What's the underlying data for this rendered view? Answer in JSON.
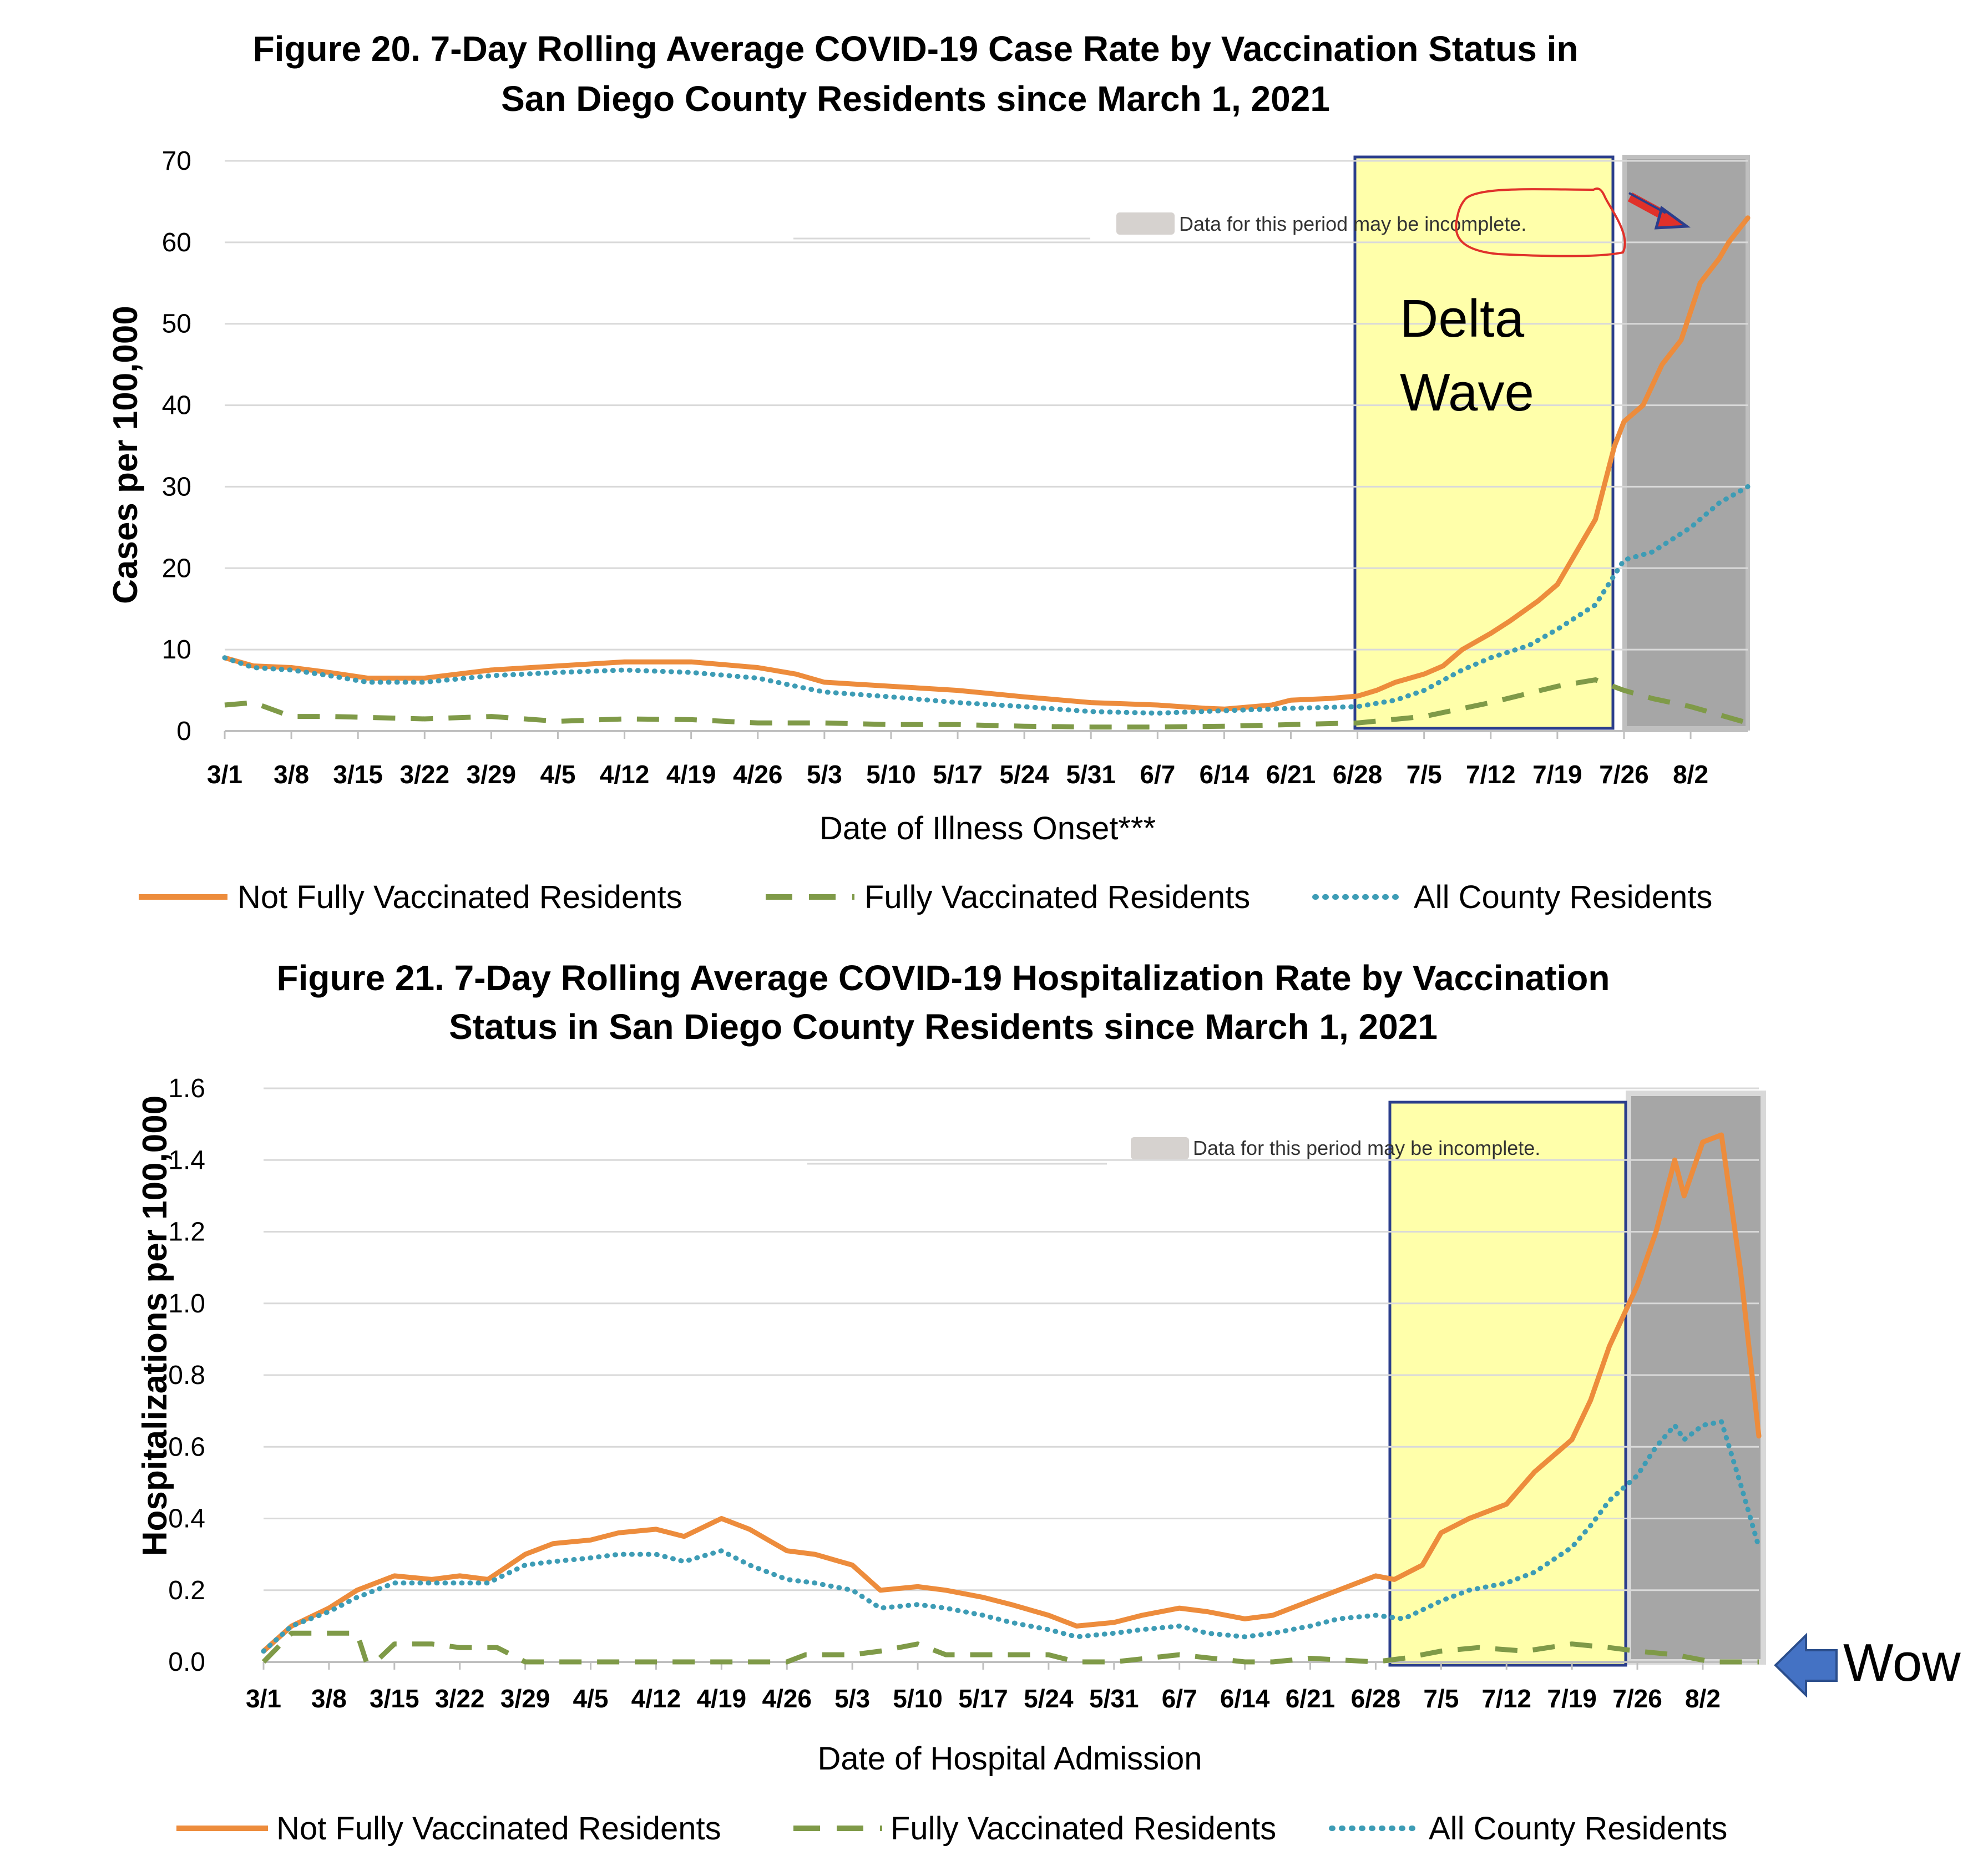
{
  "colors": {
    "not_vaccinated": "#ED8C3C",
    "fully_vaccinated": "#7F9A48",
    "all_residents": "#3D9CB5",
    "delta_box_fill": "#FFFFAA",
    "delta_box_stroke": "#2B3E8C",
    "incomplete_fill": "#A6A6A6",
    "circle_red": "#E0312A",
    "arrow_blue": "#4472C4"
  },
  "annotations": {
    "delta_line1": "Delta",
    "delta_line2": "Wave",
    "wow": "Wow",
    "incomplete_note": "Data for this period may be incomplete."
  },
  "chart_data": [
    {
      "type": "line",
      "title_line1": "Figure 20. 7-Day Rolling Average COVID-19 Case Rate by Vaccination Status in",
      "title_line2": "San Diego County Residents since March 1, 2021",
      "xlabel": "Date of Illness Onset***",
      "ylabel": "Cases per 100,000",
      "ylim": [
        0,
        70
      ],
      "yticks": [
        "0",
        "10",
        "20",
        "30",
        "40",
        "50",
        "60",
        "70"
      ],
      "xlim_days": [
        0,
        160
      ],
      "xticks": [
        "3/1",
        "3/8",
        "3/15",
        "3/22",
        "3/29",
        "4/5",
        "4/12",
        "4/19",
        "4/26",
        "5/3",
        "5/10",
        "5/17",
        "5/24",
        "5/31",
        "6/7",
        "6/14",
        "6/21",
        "6/28",
        "7/5",
        "7/12",
        "7/19",
        "7/26",
        "8/2"
      ],
      "highlight_days": [
        119,
        146
      ],
      "incomplete_days": [
        147,
        160
      ],
      "series": [
        {
          "name": "Not Fully Vaccinated Residents",
          "style": "solid",
          "x": [
            0,
            3,
            7,
            11,
            15,
            21,
            28,
            35,
            42,
            49,
            56,
            60,
            63,
            70,
            77,
            84,
            91,
            98,
            103,
            105,
            110,
            112,
            116,
            119,
            121,
            123,
            126,
            128,
            130,
            133,
            135,
            138,
            140,
            142,
            144,
            146,
            147,
            149,
            151,
            153,
            155,
            157,
            158,
            160
          ],
          "values": [
            9,
            8,
            7.8,
            7.2,
            6.5,
            6.5,
            7.5,
            8,
            8.5,
            8.5,
            7.8,
            7,
            6,
            5.5,
            5,
            4.2,
            3.5,
            3.2,
            2.8,
            2.7,
            3.2,
            3.8,
            4,
            4.3,
            5,
            6,
            7,
            8,
            10,
            12,
            13.5,
            16,
            18,
            22,
            26,
            35,
            38,
            40,
            45,
            48,
            55,
            58,
            60,
            63
          ]
        },
        {
          "name": "Fully Vaccinated Residents",
          "style": "dashed",
          "x": [
            0,
            3,
            7,
            11,
            21,
            28,
            35,
            42,
            49,
            56,
            63,
            70,
            77,
            84,
            91,
            98,
            105,
            112,
            119,
            126,
            133,
            140,
            144,
            147,
            150,
            154,
            157,
            160
          ],
          "values": [
            3.2,
            3.5,
            1.8,
            1.8,
            1.5,
            1.8,
            1.2,
            1.5,
            1.4,
            1,
            1,
            0.8,
            0.8,
            0.6,
            0.5,
            0.5,
            0.6,
            0.8,
            1,
            1.8,
            3.5,
            5.5,
            6.3,
            5,
            4,
            3,
            2,
            1
          ]
        },
        {
          "name": "All County Residents",
          "style": "dotted",
          "x": [
            0,
            3,
            7,
            11,
            15,
            21,
            28,
            35,
            42,
            49,
            56,
            60,
            63,
            70,
            77,
            84,
            91,
            98,
            105,
            112,
            119,
            123,
            126,
            130,
            133,
            137,
            140,
            144,
            147,
            150,
            154,
            157,
            160
          ],
          "values": [
            9,
            7.8,
            7.5,
            6.8,
            6,
            6,
            6.8,
            7.2,
            7.5,
            7.2,
            6.5,
            5.5,
            4.8,
            4.2,
            3.5,
            3,
            2.4,
            2.2,
            2.5,
            2.8,
            3,
            3.8,
            5,
            7.5,
            9,
            10.5,
            12.5,
            15.5,
            21,
            22,
            25,
            28,
            30
          ]
        }
      ]
    },
    {
      "type": "line",
      "title_line1": "Figure 21. 7-Day Rolling Average COVID-19 Hospitalization Rate by Vaccination",
      "title_line2": "Status in San Diego County Residents since March 1, 2021",
      "xlabel": "Date of Hospital Admission",
      "ylabel": "Hospitalizations per 100,000",
      "ylim": [
        0,
        1.6
      ],
      "yticks": [
        "0.0",
        "0.2",
        "0.4",
        "0.6",
        "0.8",
        "1.0",
        "1.2",
        "1.4",
        "1.6"
      ],
      "xlim_days": [
        0,
        160
      ],
      "xticks": [
        "3/1",
        "3/8",
        "3/15",
        "3/22",
        "3/29",
        "4/5",
        "4/12",
        "4/19",
        "4/26",
        "5/3",
        "5/10",
        "5/17",
        "5/24",
        "5/31",
        "6/7",
        "6/14",
        "6/21",
        "6/28",
        "7/5",
        "7/12",
        "7/19",
        "7/26",
        "8/2"
      ],
      "highlight_days": [
        120,
        146
      ],
      "incomplete_days": [
        147,
        160
      ],
      "series": [
        {
          "name": "Not Fully Vaccinated Residents",
          "style": "solid",
          "x": [
            0,
            3,
            7,
            10,
            14,
            18,
            21,
            24,
            28,
            31,
            35,
            38,
            42,
            45,
            49,
            52,
            56,
            59,
            63,
            66,
            70,
            73,
            77,
            80,
            84,
            87,
            91,
            94,
            98,
            101,
            105,
            108,
            112,
            115,
            119,
            121,
            124,
            126,
            129,
            133,
            136,
            140,
            142,
            144,
            147,
            149,
            151,
            152,
            154,
            156,
            158,
            160
          ],
          "values": [
            0.03,
            0.1,
            0.15,
            0.2,
            0.24,
            0.23,
            0.24,
            0.23,
            0.3,
            0.33,
            0.34,
            0.36,
            0.37,
            0.35,
            0.4,
            0.37,
            0.31,
            0.3,
            0.27,
            0.2,
            0.21,
            0.2,
            0.18,
            0.16,
            0.13,
            0.1,
            0.11,
            0.13,
            0.15,
            0.14,
            0.12,
            0.13,
            0.17,
            0.2,
            0.24,
            0.23,
            0.27,
            0.36,
            0.4,
            0.44,
            0.53,
            0.62,
            0.73,
            0.88,
            1.05,
            1.2,
            1.4,
            1.3,
            1.45,
            1.47,
            1.1,
            0.63
          ]
        },
        {
          "name": "Fully Vaccinated Residents",
          "style": "dashed",
          "x": [
            0,
            3,
            6,
            10,
            11,
            12,
            14,
            18,
            21,
            25,
            28,
            35,
            42,
            49,
            56,
            58,
            63,
            66,
            70,
            73,
            77,
            80,
            84,
            87,
            91,
            98,
            105,
            108,
            112,
            119,
            122,
            126,
            130,
            135,
            140,
            144,
            147,
            151,
            155,
            160
          ],
          "values": [
            0,
            0.08,
            0.08,
            0.08,
            0,
            0,
            0.05,
            0.05,
            0.04,
            0.04,
            0,
            0,
            0,
            0,
            0,
            0.02,
            0.02,
            0.03,
            0.05,
            0.02,
            0.02,
            0.02,
            0.02,
            0,
            0,
            0.02,
            0,
            0,
            0.01,
            0,
            0.01,
            0.03,
            0.04,
            0.03,
            0.05,
            0.04,
            0.03,
            0.02,
            0,
            0
          ]
        },
        {
          "name": "All County Residents",
          "style": "dotted",
          "x": [
            0,
            3,
            7,
            10,
            14,
            18,
            21,
            24,
            28,
            31,
            35,
            38,
            42,
            45,
            49,
            52,
            56,
            59,
            63,
            66,
            70,
            73,
            77,
            80,
            84,
            87,
            91,
            94,
            98,
            101,
            105,
            108,
            112,
            115,
            119,
            122,
            126,
            129,
            133,
            136,
            140,
            142,
            144,
            147,
            149,
            151,
            152,
            154,
            156,
            158,
            160
          ],
          "values": [
            0.03,
            0.1,
            0.14,
            0.18,
            0.22,
            0.22,
            0.22,
            0.22,
            0.27,
            0.28,
            0.29,
            0.3,
            0.3,
            0.28,
            0.31,
            0.27,
            0.23,
            0.22,
            0.2,
            0.15,
            0.16,
            0.15,
            0.13,
            0.11,
            0.09,
            0.07,
            0.08,
            0.09,
            0.1,
            0.08,
            0.07,
            0.08,
            0.1,
            0.12,
            0.13,
            0.12,
            0.17,
            0.2,
            0.22,
            0.25,
            0.32,
            0.38,
            0.45,
            0.52,
            0.6,
            0.66,
            0.62,
            0.66,
            0.67,
            0.5,
            0.32
          ]
        }
      ]
    }
  ]
}
